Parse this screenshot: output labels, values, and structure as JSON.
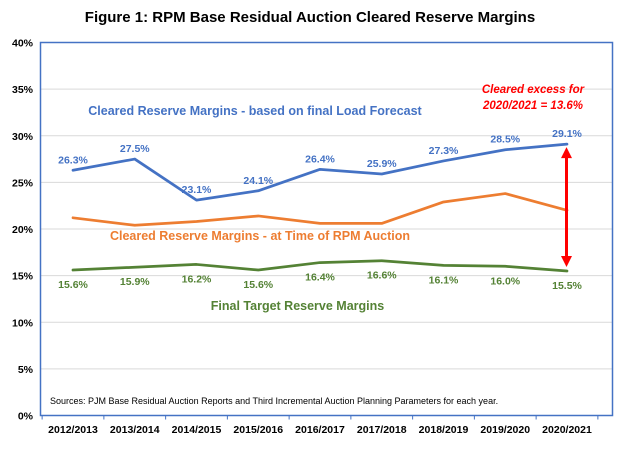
{
  "figure": {
    "title": "Figure 1: RPM Base Residual Auction Cleared Reserve Margins",
    "source_note": "Sources: PJM Base Residual Auction Reports and Third Incremental Auction Planning Parameters for each year.",
    "annotation": {
      "line1": "Cleared excess for",
      "line2": "2020/2021 = 13.6%",
      "color": "#FF0000"
    }
  },
  "chart_data": {
    "type": "line",
    "title": "Figure 1: RPM Base Residual Auction Cleared Reserve Margins",
    "categories": [
      "2012/2013",
      "2013/2014",
      "2014/2015",
      "2015/2016",
      "2016/2017",
      "2017/2018",
      "2018/2019",
      "2019/2020",
      "2020/2021"
    ],
    "series": [
      {
        "name": "Cleared Reserve Margins - based on final Load Forecast",
        "color": "#4472C4",
        "values": [
          26.3,
          27.5,
          23.1,
          24.1,
          26.4,
          25.9,
          27.3,
          28.5,
          29.1
        ],
        "data_labels": "above"
      },
      {
        "name": "Cleared Reserve Margins - at Time of RPM Auction",
        "color": "#ED7D31",
        "values": [
          21.2,
          20.4,
          20.8,
          21.4,
          20.6,
          20.6,
          22.9,
          23.8,
          22.0
        ],
        "data_labels": "none"
      },
      {
        "name": "Final Target Reserve Margins",
        "color": "#548235",
        "values": [
          15.6,
          15.9,
          16.2,
          15.6,
          16.4,
          16.6,
          16.1,
          16.0,
          15.5
        ],
        "data_labels": "below"
      }
    ],
    "xlabel": "",
    "ylabel": "",
    "ylim": [
      0,
      40
    ],
    "ytick_step": 5,
    "ytick_format": "percent",
    "grid": "horizontal",
    "gridline_color": "#D9D9D9",
    "plot_border_color": "#4472C4",
    "legend_position": "none",
    "annotation": {
      "text": "Cleared excess for 2020/2021 = 13.6%",
      "color": "#FF0000",
      "arrow": {
        "category": "2020/2021",
        "from_value": 29.1,
        "to_value": 15.5
      }
    }
  }
}
